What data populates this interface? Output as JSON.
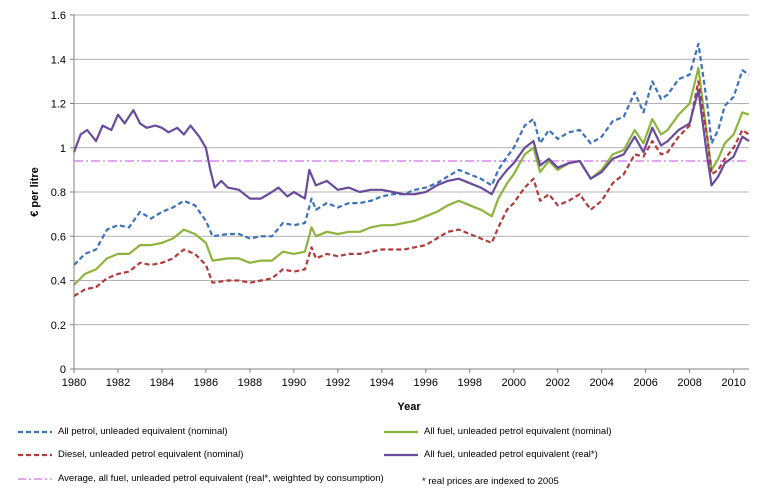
{
  "chart_data": {
    "type": "line",
    "title": "",
    "xlabel": "Year",
    "ylabel": "€ per litre",
    "xlim": [
      1980,
      2010.7
    ],
    "ylim": [
      0,
      1.6
    ],
    "x_ticks": [
      1980,
      1982,
      1984,
      1986,
      1988,
      1990,
      1992,
      1994,
      1996,
      1998,
      2000,
      2002,
      2004,
      2006,
      2008,
      2010
    ],
    "y_ticks": [
      0,
      0.2,
      0.4,
      0.6,
      0.8,
      1.0,
      1.2,
      1.4,
      1.6
    ],
    "y_tick_labels": [
      "0",
      "0.2",
      "0.4",
      "0.6",
      "0.8",
      "1",
      "1.2",
      "1.4",
      "1.6"
    ],
    "grid": "horizontal",
    "legend_position": "bottom",
    "footnote": "* real prices are indexed to 2005",
    "series": [
      {
        "name": "All petrol, unleaded equivalent (nominal)",
        "color": "#3b72b8",
        "dash": "dashed",
        "points": [
          [
            1980,
            0.47
          ],
          [
            1980.5,
            0.52
          ],
          [
            1981,
            0.54
          ],
          [
            1981.5,
            0.63
          ],
          [
            1982,
            0.65
          ],
          [
            1982.5,
            0.64
          ],
          [
            1983,
            0.71
          ],
          [
            1983.5,
            0.68
          ],
          [
            1984,
            0.71
          ],
          [
            1984.5,
            0.73
          ],
          [
            1985,
            0.76
          ],
          [
            1985.5,
            0.74
          ],
          [
            1986,
            0.67
          ],
          [
            1986.3,
            0.6
          ],
          [
            1987,
            0.61
          ],
          [
            1987.5,
            0.61
          ],
          [
            1988,
            0.59
          ],
          [
            1988.5,
            0.6
          ],
          [
            1989,
            0.6
          ],
          [
            1989.5,
            0.66
          ],
          [
            1990,
            0.65
          ],
          [
            1990.5,
            0.66
          ],
          [
            1990.8,
            0.77
          ],
          [
            1991,
            0.72
          ],
          [
            1991.5,
            0.75
          ],
          [
            1992,
            0.73
          ],
          [
            1992.5,
            0.75
          ],
          [
            1993,
            0.75
          ],
          [
            1993.5,
            0.76
          ],
          [
            1994,
            0.78
          ],
          [
            1994.5,
            0.79
          ],
          [
            1995,
            0.79
          ],
          [
            1995.5,
            0.81
          ],
          [
            1996,
            0.82
          ],
          [
            1996.5,
            0.84
          ],
          [
            1997,
            0.87
          ],
          [
            1997.5,
            0.9
          ],
          [
            1998,
            0.88
          ],
          [
            1998.5,
            0.86
          ],
          [
            1999,
            0.83
          ],
          [
            1999.3,
            0.9
          ],
          [
            1999.7,
            0.96
          ],
          [
            2000,
            1.0
          ],
          [
            2000.5,
            1.1
          ],
          [
            2000.9,
            1.13
          ],
          [
            2001.2,
            1.02
          ],
          [
            2001.6,
            1.08
          ],
          [
            2002,
            1.04
          ],
          [
            2002.5,
            1.07
          ],
          [
            2003,
            1.08
          ],
          [
            2003.5,
            1.02
          ],
          [
            2004,
            1.05
          ],
          [
            2004.5,
            1.12
          ],
          [
            2005,
            1.14
          ],
          [
            2005.5,
            1.25
          ],
          [
            2005.9,
            1.16
          ],
          [
            2006.3,
            1.3
          ],
          [
            2006.7,
            1.22
          ],
          [
            2007,
            1.24
          ],
          [
            2007.5,
            1.31
          ],
          [
            2008,
            1.33
          ],
          [
            2008.4,
            1.47
          ],
          [
            2008.8,
            1.2
          ],
          [
            2009,
            1.02
          ],
          [
            2009.3,
            1.08
          ],
          [
            2009.6,
            1.19
          ],
          [
            2010,
            1.23
          ],
          [
            2010.4,
            1.35
          ],
          [
            2010.7,
            1.33
          ]
        ]
      },
      {
        "name": "All fuel, unleaded petrol equivalent (nominal)",
        "color": "#8db43d",
        "dash": "solid",
        "points": [
          [
            1980,
            0.38
          ],
          [
            1980.5,
            0.43
          ],
          [
            1981,
            0.45
          ],
          [
            1981.5,
            0.5
          ],
          [
            1982,
            0.52
          ],
          [
            1982.5,
            0.52
          ],
          [
            1983,
            0.56
          ],
          [
            1983.5,
            0.56
          ],
          [
            1984,
            0.57
          ],
          [
            1984.5,
            0.59
          ],
          [
            1985,
            0.63
          ],
          [
            1985.5,
            0.61
          ],
          [
            1986,
            0.57
          ],
          [
            1986.3,
            0.49
          ],
          [
            1987,
            0.5
          ],
          [
            1987.5,
            0.5
          ],
          [
            1988,
            0.48
          ],
          [
            1988.5,
            0.49
          ],
          [
            1989,
            0.49
          ],
          [
            1989.5,
            0.53
          ],
          [
            1990,
            0.52
          ],
          [
            1990.5,
            0.53
          ],
          [
            1990.8,
            0.64
          ],
          [
            1991,
            0.6
          ],
          [
            1991.5,
            0.62
          ],
          [
            1992,
            0.61
          ],
          [
            1992.5,
            0.62
          ],
          [
            1993,
            0.62
          ],
          [
            1993.5,
            0.64
          ],
          [
            1994,
            0.65
          ],
          [
            1994.5,
            0.65
          ],
          [
            1995,
            0.66
          ],
          [
            1995.5,
            0.67
          ],
          [
            1996,
            0.69
          ],
          [
            1996.5,
            0.71
          ],
          [
            1997,
            0.74
          ],
          [
            1997.5,
            0.76
          ],
          [
            1998,
            0.74
          ],
          [
            1998.5,
            0.72
          ],
          [
            1999,
            0.69
          ],
          [
            1999.3,
            0.77
          ],
          [
            1999.7,
            0.84
          ],
          [
            2000,
            0.88
          ],
          [
            2000.5,
            0.97
          ],
          [
            2000.9,
            1.0
          ],
          [
            2001.2,
            0.89
          ],
          [
            2001.6,
            0.94
          ],
          [
            2002,
            0.9
          ],
          [
            2002.5,
            0.93
          ],
          [
            2003,
            0.94
          ],
          [
            2003.5,
            0.86
          ],
          [
            2004,
            0.9
          ],
          [
            2004.5,
            0.97
          ],
          [
            2005,
            0.99
          ],
          [
            2005.5,
            1.08
          ],
          [
            2005.9,
            1.02
          ],
          [
            2006.3,
            1.13
          ],
          [
            2006.7,
            1.06
          ],
          [
            2007,
            1.08
          ],
          [
            2007.5,
            1.15
          ],
          [
            2008,
            1.2
          ],
          [
            2008.4,
            1.36
          ],
          [
            2008.8,
            1.05
          ],
          [
            2009,
            0.9
          ],
          [
            2009.3,
            0.95
          ],
          [
            2009.6,
            1.02
          ],
          [
            2010,
            1.06
          ],
          [
            2010.4,
            1.16
          ],
          [
            2010.7,
            1.15
          ]
        ]
      },
      {
        "name": "Diesel, unleaded petrol equivalent (nominal)",
        "color": "#b23a3a",
        "dash": "dashed",
        "points": [
          [
            1980,
            0.33
          ],
          [
            1980.5,
            0.36
          ],
          [
            1981,
            0.37
          ],
          [
            1981.5,
            0.41
          ],
          [
            1982,
            0.43
          ],
          [
            1982.5,
            0.44
          ],
          [
            1983,
            0.48
          ],
          [
            1983.5,
            0.47
          ],
          [
            1984,
            0.48
          ],
          [
            1984.5,
            0.5
          ],
          [
            1985,
            0.54
          ],
          [
            1985.5,
            0.52
          ],
          [
            1986,
            0.47
          ],
          [
            1986.3,
            0.39
          ],
          [
            1987,
            0.4
          ],
          [
            1987.5,
            0.4
          ],
          [
            1988,
            0.39
          ],
          [
            1988.5,
            0.4
          ],
          [
            1989,
            0.41
          ],
          [
            1989.5,
            0.45
          ],
          [
            1990,
            0.44
          ],
          [
            1990.5,
            0.45
          ],
          [
            1990.8,
            0.55
          ],
          [
            1991,
            0.5
          ],
          [
            1991.5,
            0.52
          ],
          [
            1992,
            0.51
          ],
          [
            1992.5,
            0.52
          ],
          [
            1993,
            0.52
          ],
          [
            1993.5,
            0.53
          ],
          [
            1994,
            0.54
          ],
          [
            1994.5,
            0.54
          ],
          [
            1995,
            0.54
          ],
          [
            1995.5,
            0.55
          ],
          [
            1996,
            0.56
          ],
          [
            1996.5,
            0.59
          ],
          [
            1997,
            0.62
          ],
          [
            1997.5,
            0.63
          ],
          [
            1998,
            0.61
          ],
          [
            1998.5,
            0.59
          ],
          [
            1999,
            0.57
          ],
          [
            1999.3,
            0.64
          ],
          [
            1999.7,
            0.72
          ],
          [
            2000,
            0.75
          ],
          [
            2000.5,
            0.82
          ],
          [
            2000.9,
            0.86
          ],
          [
            2001.2,
            0.76
          ],
          [
            2001.6,
            0.79
          ],
          [
            2002,
            0.74
          ],
          [
            2002.5,
            0.76
          ],
          [
            2003,
            0.79
          ],
          [
            2003.5,
            0.72
          ],
          [
            2004,
            0.76
          ],
          [
            2004.5,
            0.84
          ],
          [
            2005,
            0.88
          ],
          [
            2005.5,
            0.97
          ],
          [
            2005.9,
            0.96
          ],
          [
            2006.3,
            1.03
          ],
          [
            2006.7,
            0.97
          ],
          [
            2007,
            0.98
          ],
          [
            2007.5,
            1.05
          ],
          [
            2008,
            1.1
          ],
          [
            2008.4,
            1.3
          ],
          [
            2008.8,
            1.05
          ],
          [
            2009,
            0.88
          ],
          [
            2009.3,
            0.9
          ],
          [
            2009.6,
            0.95
          ],
          [
            2010,
            1.0
          ],
          [
            2010.4,
            1.08
          ],
          [
            2010.7,
            1.06
          ]
        ]
      },
      {
        "name": "All fuel, unleaded petrol equivalent (real*)",
        "color": "#6a4a9c",
        "dash": "solid",
        "points": [
          [
            1980,
            0.98
          ],
          [
            1980.3,
            1.06
          ],
          [
            1980.6,
            1.08
          ],
          [
            1981,
            1.03
          ],
          [
            1981.3,
            1.1
          ],
          [
            1981.7,
            1.08
          ],
          [
            1982,
            1.15
          ],
          [
            1982.3,
            1.11
          ],
          [
            1982.7,
            1.17
          ],
          [
            1983,
            1.11
          ],
          [
            1983.3,
            1.09
          ],
          [
            1983.7,
            1.1
          ],
          [
            1984,
            1.09
          ],
          [
            1984.3,
            1.07
          ],
          [
            1984.7,
            1.09
          ],
          [
            1985,
            1.06
          ],
          [
            1985.3,
            1.1
          ],
          [
            1985.7,
            1.05
          ],
          [
            1986,
            1.0
          ],
          [
            1986.2,
            0.9
          ],
          [
            1986.4,
            0.82
          ],
          [
            1986.7,
            0.85
          ],
          [
            1987,
            0.82
          ],
          [
            1987.5,
            0.81
          ],
          [
            1988,
            0.77
          ],
          [
            1988.5,
            0.77
          ],
          [
            1989,
            0.8
          ],
          [
            1989.3,
            0.82
          ],
          [
            1989.7,
            0.78
          ],
          [
            1990,
            0.8
          ],
          [
            1990.5,
            0.77
          ],
          [
            1990.7,
            0.9
          ],
          [
            1991,
            0.83
          ],
          [
            1991.5,
            0.85
          ],
          [
            1992,
            0.81
          ],
          [
            1992.5,
            0.82
          ],
          [
            1993,
            0.8
          ],
          [
            1993.5,
            0.81
          ],
          [
            1994,
            0.81
          ],
          [
            1994.5,
            0.8
          ],
          [
            1995,
            0.79
          ],
          [
            1995.5,
            0.79
          ],
          [
            1996,
            0.8
          ],
          [
            1996.5,
            0.83
          ],
          [
            1997,
            0.85
          ],
          [
            1997.5,
            0.86
          ],
          [
            1998,
            0.84
          ],
          [
            1998.5,
            0.82
          ],
          [
            1999,
            0.79
          ],
          [
            1999.3,
            0.85
          ],
          [
            1999.7,
            0.9
          ],
          [
            2000,
            0.93
          ],
          [
            2000.5,
            1.0
          ],
          [
            2000.9,
            1.03
          ],
          [
            2001.2,
            0.92
          ],
          [
            2001.6,
            0.95
          ],
          [
            2002,
            0.91
          ],
          [
            2002.5,
            0.93
          ],
          [
            2003,
            0.94
          ],
          [
            2003.5,
            0.86
          ],
          [
            2004,
            0.89
          ],
          [
            2004.5,
            0.95
          ],
          [
            2005,
            0.97
          ],
          [
            2005.5,
            1.05
          ],
          [
            2005.9,
            0.98
          ],
          [
            2006.3,
            1.09
          ],
          [
            2006.7,
            1.01
          ],
          [
            2007,
            1.03
          ],
          [
            2007.5,
            1.08
          ],
          [
            2008,
            1.11
          ],
          [
            2008.4,
            1.26
          ],
          [
            2008.8,
            0.96
          ],
          [
            2009,
            0.83
          ],
          [
            2009.3,
            0.87
          ],
          [
            2009.6,
            0.93
          ],
          [
            2010,
            0.96
          ],
          [
            2010.4,
            1.05
          ],
          [
            2010.7,
            1.03
          ]
        ]
      },
      {
        "name": "Average, all fuel, unleaded petrol equivalent (real*, weighted by consumption)",
        "color": "#d985f0",
        "dash": "dashdot",
        "points": [
          [
            1980,
            0.94
          ],
          [
            2010.7,
            0.94
          ]
        ]
      }
    ]
  }
}
